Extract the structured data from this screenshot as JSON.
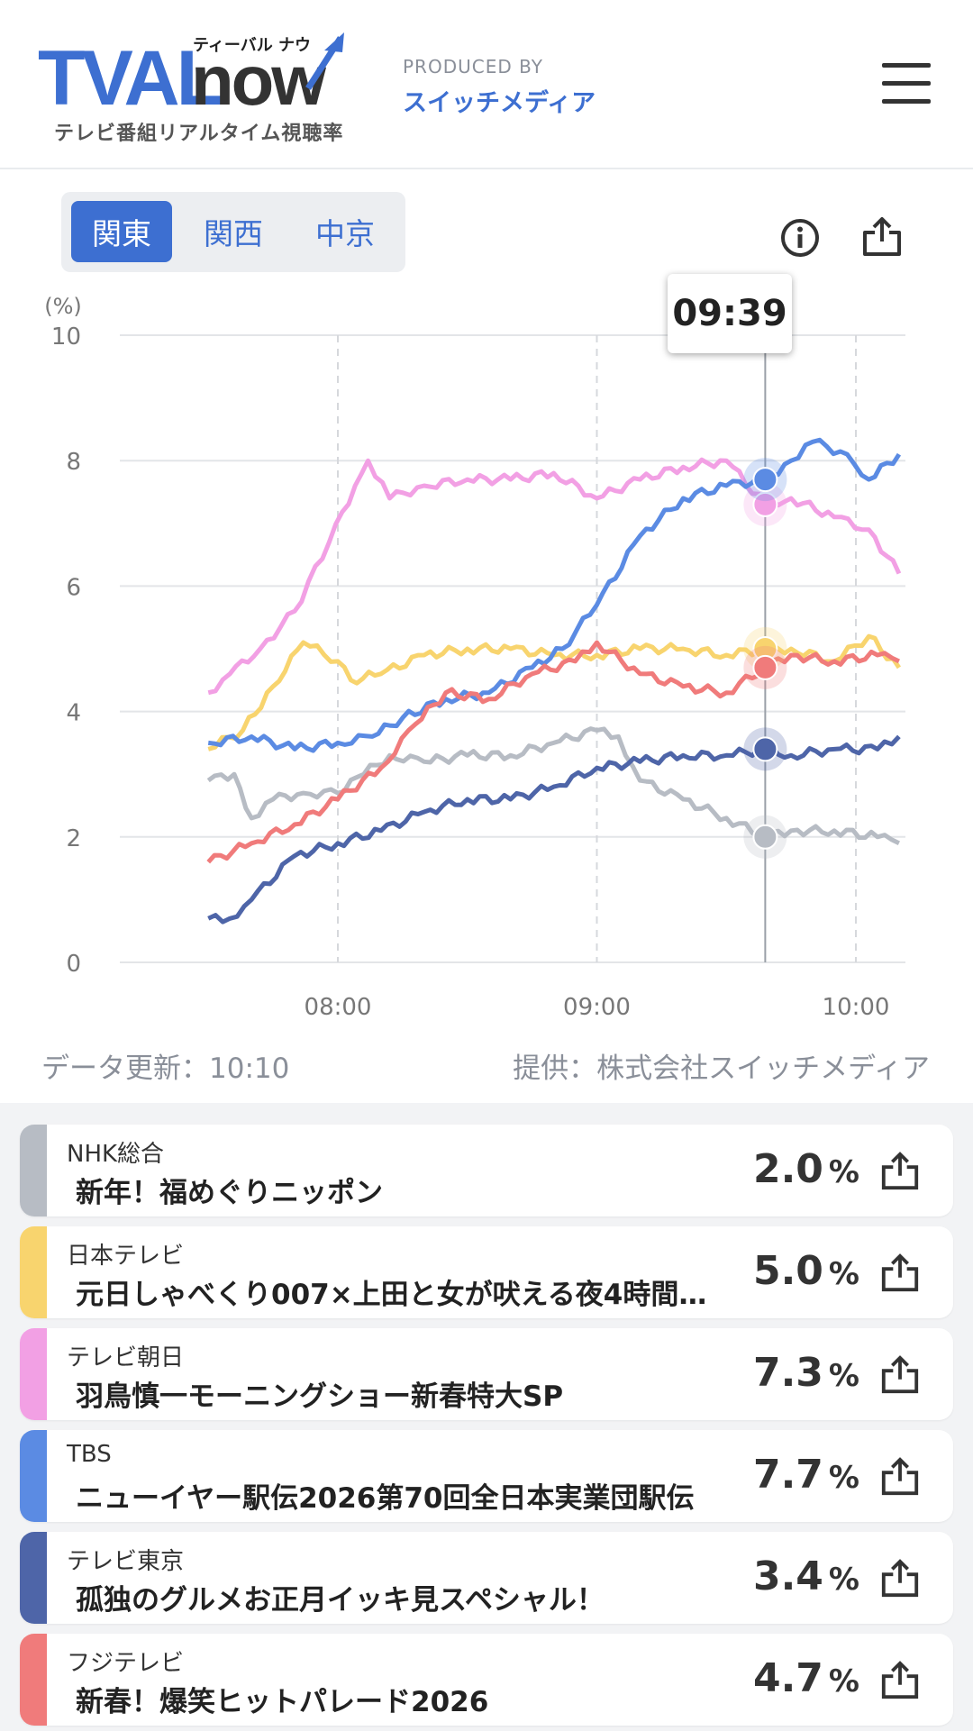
{
  "header": {
    "logo_text": "TVALnow",
    "logo_kana": "ティーバル ナウ",
    "logo_subtitle": "テレビ番組リアルタイム視聴率",
    "produced_by": "PRODUCED BY",
    "company": "スイッチメディア",
    "menu_icon": "hamburger-menu-icon"
  },
  "regions": {
    "tabs": [
      {
        "label": "関東",
        "active": true
      },
      {
        "label": "関西",
        "active": false
      },
      {
        "label": "中京",
        "active": false
      }
    ],
    "info_icon": "info-icon",
    "share_icon": "share-icon"
  },
  "tooltip": {
    "time": "09:39"
  },
  "chart_data": {
    "type": "line",
    "ylabel": "(%)",
    "ylim": [
      0,
      10
    ],
    "yticks": [
      "0",
      "2",
      "4",
      "6",
      "8",
      "10"
    ],
    "xticks": [
      "08:00",
      "09:00",
      "10:00"
    ],
    "x_start": "07:30",
    "x_end": "10:11",
    "cursor_time": "09:39",
    "grid": true,
    "series": [
      {
        "name": "NHK総合",
        "color": "#b7bcc4",
        "x": [
          "07:30",
          "07:36",
          "07:40",
          "07:45",
          "07:52",
          "08:00",
          "08:06",
          "08:12",
          "08:20",
          "08:30",
          "08:40",
          "08:50",
          "09:00",
          "09:05",
          "09:10",
          "09:20",
          "09:30",
          "09:39",
          "09:45",
          "09:55",
          "10:05",
          "10:10"
        ],
        "values": [
          2.9,
          3.0,
          2.3,
          2.6,
          2.7,
          2.7,
          3.0,
          3.3,
          3.2,
          3.3,
          3.3,
          3.5,
          3.7,
          3.6,
          2.9,
          2.6,
          2.3,
          2.0,
          2.1,
          2.1,
          2.0,
          1.9
        ]
      },
      {
        "name": "日本テレビ",
        "color": "#f8d46e",
        "x": [
          "07:30",
          "07:38",
          "07:45",
          "07:52",
          "08:00",
          "08:03",
          "08:10",
          "08:20",
          "08:30",
          "08:40",
          "08:50",
          "09:00",
          "09:10",
          "09:20",
          "09:30",
          "09:39",
          "09:45",
          "09:55",
          "10:03",
          "10:10"
        ],
        "values": [
          3.4,
          3.7,
          4.4,
          5.1,
          4.8,
          4.5,
          4.6,
          4.9,
          5.0,
          5.0,
          4.9,
          4.9,
          5.0,
          5.0,
          4.9,
          5.0,
          5.0,
          4.8,
          5.2,
          4.7
        ]
      },
      {
        "name": "テレビ朝日",
        "color": "#f2a0e4",
        "x": [
          "07:30",
          "07:35",
          "07:42",
          "07:50",
          "07:58",
          "08:04",
          "08:07",
          "08:12",
          "08:20",
          "08:30",
          "08:40",
          "08:50",
          "09:00",
          "09:10",
          "09:20",
          "09:30",
          "09:39",
          "09:45",
          "09:55",
          "10:03",
          "10:10"
        ],
        "values": [
          4.3,
          4.6,
          5.0,
          5.6,
          6.7,
          7.6,
          8.0,
          7.4,
          7.6,
          7.7,
          7.7,
          7.8,
          7.4,
          7.7,
          7.9,
          8.0,
          7.3,
          7.4,
          7.1,
          6.9,
          6.2
        ]
      },
      {
        "name": "TBS",
        "color": "#5b8be3",
        "x": [
          "07:30",
          "07:40",
          "07:50",
          "08:00",
          "08:08",
          "08:15",
          "08:25",
          "08:35",
          "08:45",
          "08:52",
          "09:00",
          "09:10",
          "09:20",
          "09:30",
          "09:39",
          "09:45",
          "09:50",
          "09:58",
          "10:03",
          "10:10"
        ],
        "values": [
          3.5,
          3.6,
          3.4,
          3.5,
          3.6,
          3.9,
          4.2,
          4.3,
          4.7,
          5.0,
          5.7,
          6.8,
          7.4,
          7.6,
          7.7,
          8.0,
          8.3,
          8.1,
          7.7,
          8.1
        ]
      },
      {
        "name": "テレビ東京",
        "color": "#4e65a8",
        "x": [
          "07:30",
          "07:35",
          "07:40",
          "07:50",
          "08:00",
          "08:10",
          "08:20",
          "08:30",
          "08:40",
          "08:50",
          "09:00",
          "09:10",
          "09:20",
          "09:30",
          "09:39",
          "09:45",
          "09:55",
          "10:05",
          "10:10"
        ],
        "values": [
          0.7,
          0.7,
          1.0,
          1.7,
          1.9,
          2.1,
          2.4,
          2.6,
          2.6,
          2.8,
          3.1,
          3.2,
          3.3,
          3.3,
          3.4,
          3.3,
          3.4,
          3.4,
          3.6
        ]
      },
      {
        "name": "フジテレビ",
        "color": "#f07b7b",
        "x": [
          "07:30",
          "07:40",
          "07:50",
          "08:00",
          "08:10",
          "08:18",
          "08:25",
          "08:35",
          "08:45",
          "08:55",
          "09:00",
          "09:10",
          "09:20",
          "09:30",
          "09:39",
          "09:45",
          "09:55",
          "10:05",
          "10:10"
        ],
        "values": [
          1.6,
          1.9,
          2.2,
          2.6,
          3.1,
          3.8,
          4.3,
          4.2,
          4.6,
          4.8,
          5.1,
          4.6,
          4.4,
          4.3,
          4.7,
          4.9,
          4.8,
          4.9,
          4.8
        ]
      }
    ]
  },
  "footer": {
    "updated": "データ更新：10:10",
    "provider": "提供：株式会社スイッチメディア"
  },
  "list": [
    {
      "station": "NHK総合",
      "program": "新年！福めぐりニッポン",
      "rating": "2.0",
      "unit": "%",
      "color": "#b7bcc4"
    },
    {
      "station": "日本テレビ",
      "program": "元日しゃべくり007×上田と女が吠える夜4時間…",
      "rating": "5.0",
      "unit": "%",
      "color": "#f8d46e"
    },
    {
      "station": "テレビ朝日",
      "program": "羽鳥慎一モーニングショー新春特大SP",
      "rating": "7.3",
      "unit": "%",
      "color": "#f2a0e4"
    },
    {
      "station": "TBS",
      "program": "ニューイヤー駅伝2026第70回全日本実業団駅伝",
      "rating": "7.7",
      "unit": "%",
      "color": "#5b8be3"
    },
    {
      "station": "テレビ東京",
      "program": "孤独のグルメお正月イッキ見スペシャル！",
      "rating": "3.4",
      "unit": "%",
      "color": "#4e65a8"
    },
    {
      "station": "フジテレビ",
      "program": "新春！爆笑ヒットパレード2026",
      "rating": "4.7",
      "unit": "%",
      "color": "#f07b7b"
    }
  ]
}
